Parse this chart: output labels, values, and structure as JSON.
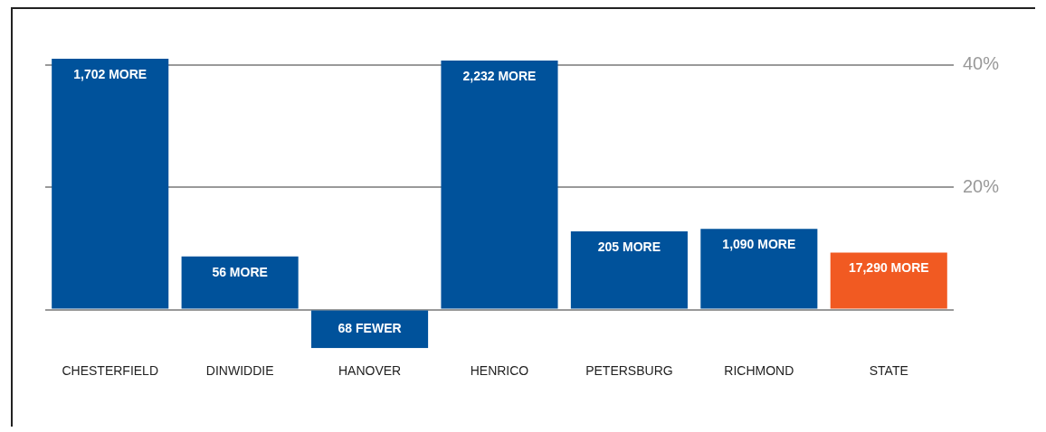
{
  "chart_data": {
    "type": "bar",
    "categories": [
      "CHESTERFIELD",
      "DINWIDDIE",
      "HANOVER",
      "HENRICO",
      "PETERSBURG",
      "RICHMOND",
      "STATE"
    ],
    "values": [
      41.0,
      8.7,
      -6.3,
      40.7,
      12.8,
      13.2,
      9.3
    ],
    "colors": [
      "#00529b",
      "#00529b",
      "#00529b",
      "#00529b",
      "#00529b",
      "#00529b",
      "#f15a22"
    ],
    "annotations": [
      {
        "text": "1,702 MORE",
        "x": "CHESTERFIELD",
        "y": 41.0
      },
      {
        "text": "56 MORE",
        "x": "DINWIDDIE",
        "y": 8.7
      },
      {
        "text": "68 FEWER",
        "x": "HANOVER",
        "y": -6.3
      },
      {
        "text": "2,232 MORE",
        "x": "HENRICO",
        "y": 40.7
      },
      {
        "text": "205 MORE",
        "x": "PETERSBURG",
        "y": 12.8
      },
      {
        "text": "1,090 MORE",
        "x": "RICHMOND",
        "y": 13.2
      },
      {
        "text": "17,290 MORE",
        "x": "STATE",
        "y": 9.3
      }
    ],
    "ylim": [
      -6.3,
      41.0
    ],
    "yticks": [
      {
        "value": 0,
        "label": null
      },
      {
        "value": 20,
        "label": "20%"
      },
      {
        "value": 40,
        "label": "40%"
      }
    ],
    "grid": "y",
    "legend": false
  }
}
